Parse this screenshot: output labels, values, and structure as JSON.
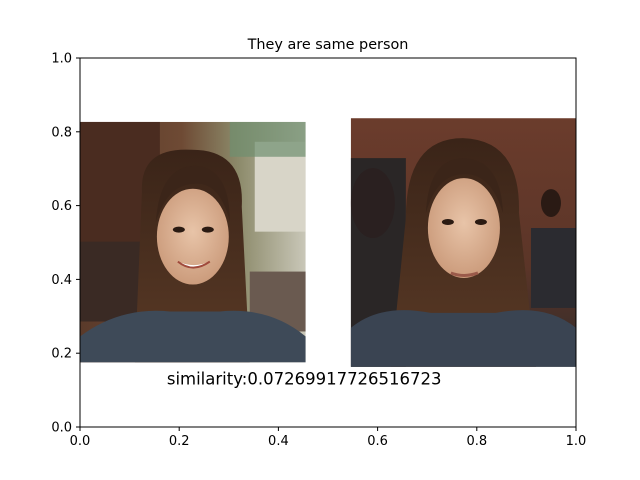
{
  "chart_data": {
    "type": "scatter",
    "title": "They are same person",
    "xlabel": "",
    "ylabel": "",
    "xlim": [
      0,
      1
    ],
    "ylim": [
      0,
      1
    ],
    "xticks": [
      "0.0",
      "0.2",
      "0.4",
      "0.6",
      "0.8",
      "1.0"
    ],
    "yticks": [
      "0.0",
      "0.2",
      "0.4",
      "0.6",
      "0.8",
      "1.0"
    ],
    "grid": false,
    "annotation": "similarity:0.07269917726516723",
    "images": [
      {
        "name": "face-photo-left",
        "extent_x": [
          0.0,
          0.455
        ],
        "extent_y": [
          0.175,
          0.827
        ]
      },
      {
        "name": "face-photo-right",
        "extent_x": [
          0.546,
          1.0
        ],
        "extent_y": [
          0.163,
          0.837
        ]
      }
    ]
  }
}
